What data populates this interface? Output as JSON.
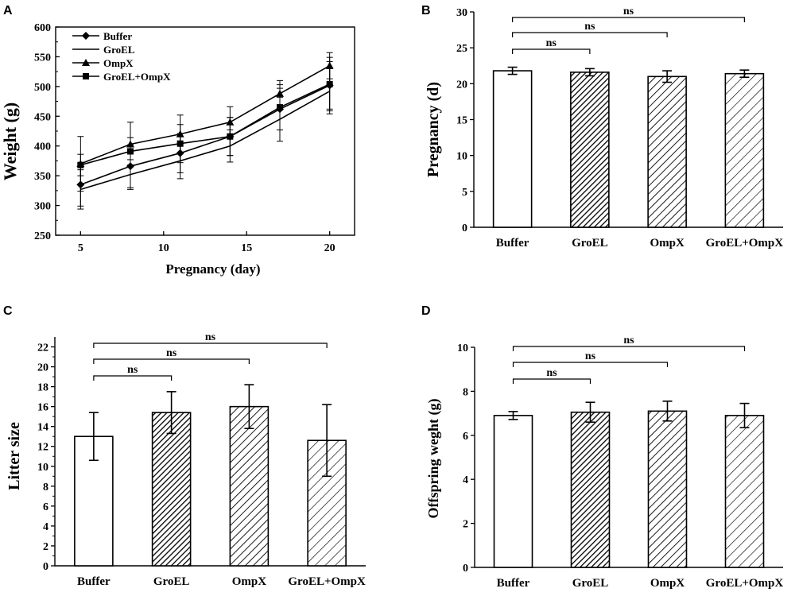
{
  "chart_data": [
    {
      "panel": "A",
      "type": "line",
      "xlabel": "Pregnancy (day)",
      "ylabel": "Weight (g)",
      "xlim": [
        3.5,
        21.5
      ],
      "ylim": [
        250,
        600
      ],
      "xticks": [
        "5",
        "10",
        "15",
        "20"
      ],
      "yticks": [
        "250",
        "300",
        "350",
        "400",
        "450",
        "500",
        "550",
        "600"
      ],
      "legend_position": "top-left",
      "x": [
        5,
        8,
        11,
        14,
        17,
        20
      ],
      "series": [
        {
          "name": "Buffer",
          "marker": "diamond",
          "values": [
            335,
            366,
            388,
            416,
            462,
            502
          ],
          "errors": [
            36,
            36,
            33,
            32,
            35,
            40
          ]
        },
        {
          "name": "GroEL",
          "marker": "none",
          "values": [
            327,
            352,
            375,
            400,
            445,
            492
          ],
          "errors": [
            33,
            25,
            30,
            27,
            37,
            38
          ]
        },
        {
          "name": "OmpX",
          "marker": "triangle",
          "values": [
            370,
            403,
            420,
            440,
            488,
            535
          ],
          "errors": [
            46,
            37,
            32,
            26,
            22,
            22
          ]
        },
        {
          "name": "GroEL+OmpX",
          "marker": "square",
          "values": [
            368,
            391,
            404,
            416,
            465,
            504
          ],
          "errors": [
            18,
            23,
            32,
            32,
            38,
            45
          ]
        }
      ]
    },
    {
      "panel": "B",
      "type": "bar",
      "categories": [
        "Buffer",
        "GroEL",
        "OmpX",
        "GroEL+OmpX"
      ],
      "values": [
        21.8,
        21.6,
        21.0,
        21.4
      ],
      "errors": [
        0.5,
        0.5,
        0.8,
        0.5
      ],
      "fills": [
        "open",
        "dense-hatch",
        "hatch",
        "light-hatch"
      ],
      "xlabel": "",
      "ylabel": "Pregnancy (d)",
      "ylim": [
        0,
        30
      ],
      "yticks": [
        "0",
        "5",
        "10",
        "15",
        "20",
        "25",
        "30"
      ],
      "comparisons": [
        {
          "from": "Buffer",
          "to": "GroEL",
          "label": "ns"
        },
        {
          "from": "Buffer",
          "to": "OmpX",
          "label": "ns"
        },
        {
          "from": "Buffer",
          "to": "GroEL+OmpX",
          "label": "ns"
        }
      ]
    },
    {
      "panel": "C",
      "type": "bar",
      "categories": [
        "Buffer",
        "GroEL",
        "OmpX",
        "GroEL+OmpX"
      ],
      "values": [
        13.0,
        15.4,
        16.0,
        12.6
      ],
      "errors": [
        2.4,
        2.1,
        2.2,
        3.6
      ],
      "fills": [
        "open",
        "dense-hatch",
        "hatch",
        "light-hatch"
      ],
      "xlabel": "",
      "ylabel": "Litter size",
      "ylim": [
        0,
        23
      ],
      "yticks": [
        "0",
        "2",
        "4",
        "6",
        "8",
        "10",
        "12",
        "14",
        "16",
        "18",
        "20",
        "22"
      ],
      "comparisons": [
        {
          "from": "Buffer",
          "to": "GroEL",
          "label": "ns"
        },
        {
          "from": "Buffer",
          "to": "OmpX",
          "label": "ns"
        },
        {
          "from": "Buffer",
          "to": "GroEL+OmpX",
          "label": "ns"
        }
      ]
    },
    {
      "panel": "D",
      "type": "bar",
      "categories": [
        "Buffer",
        "GroEL",
        "OmpX",
        "GroEL+OmpX"
      ],
      "values": [
        6.9,
        7.05,
        7.1,
        6.9
      ],
      "errors": [
        0.18,
        0.45,
        0.45,
        0.55
      ],
      "fills": [
        "open",
        "dense-hatch",
        "hatch",
        "light-hatch"
      ],
      "xlabel": "",
      "ylabel": "Offspring weght (g)",
      "ylim": [
        0,
        10
      ],
      "yticks": [
        "0",
        "2",
        "4",
        "6",
        "8",
        "10"
      ],
      "comparisons": [
        {
          "from": "Buffer",
          "to": "GroEL",
          "label": "ns"
        },
        {
          "from": "Buffer",
          "to": "OmpX",
          "label": "ns"
        },
        {
          "from": "Buffer",
          "to": "GroEL+OmpX",
          "label": "ns"
        }
      ]
    }
  ]
}
